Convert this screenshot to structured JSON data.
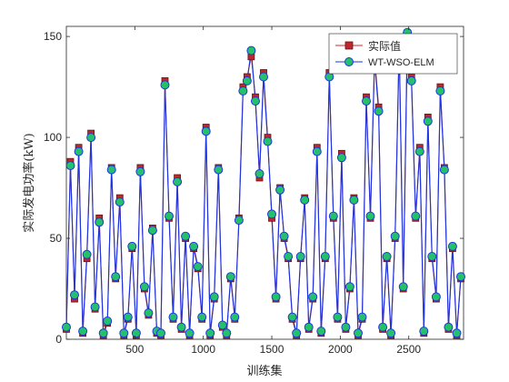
{
  "chart_data": {
    "type": "line",
    "xlabel": "训练集",
    "ylabel": "实际发电功率(kW)",
    "xlim": [
      0,
      2900
    ],
    "ylim": [
      0,
      155
    ],
    "x_ticks": [
      500,
      1000,
      1500,
      2000,
      2500
    ],
    "y_ticks": [
      0,
      50,
      100,
      150
    ],
    "grid": false,
    "legend_position": "top-right",
    "colors": {
      "actual_line": "#d62728",
      "actual_marker_fill": "#c0262a",
      "actual_marker_edge": "#5a1a1a",
      "pred_line": "#1f35e0",
      "pred_marker_fill": "#23c26a",
      "pred_marker_edge": "#1f35e0"
    },
    "series": [
      {
        "name": "实际值",
        "marker": "square",
        "x": [
          0,
          30,
          60,
          90,
          120,
          150,
          180,
          210,
          240,
          270,
          300,
          330,
          360,
          390,
          420,
          450,
          480,
          510,
          540,
          570,
          600,
          630,
          660,
          690,
          720,
          750,
          780,
          810,
          840,
          870,
          900,
          930,
          960,
          990,
          1020,
          1050,
          1080,
          1110,
          1140,
          1170,
          1200,
          1230,
          1260,
          1290,
          1320,
          1350,
          1380,
          1410,
          1440,
          1470,
          1500,
          1530,
          1560,
          1590,
          1620,
          1650,
          1680,
          1710,
          1740,
          1770,
          1800,
          1830,
          1860,
          1890,
          1920,
          1950,
          1980,
          2010,
          2040,
          2070,
          2100,
          2130,
          2160,
          2190,
          2220,
          2250,
          2280,
          2310,
          2340,
          2370,
          2400,
          2430,
          2460,
          2490,
          2520,
          2550,
          2580,
          2610,
          2640,
          2670,
          2700,
          2730,
          2760,
          2790,
          2820,
          2850,
          2880
        ],
        "values": [
          5,
          88,
          20,
          95,
          3,
          40,
          102,
          15,
          60,
          2,
          8,
          85,
          30,
          70,
          2,
          10,
          45,
          2,
          85,
          25,
          12,
          55,
          3,
          2,
          128,
          60,
          10,
          80,
          5,
          50,
          2,
          45,
          35,
          10,
          105,
          2,
          20,
          85,
          6,
          2,
          30,
          10,
          60,
          125,
          130,
          140,
          120,
          80,
          132,
          100,
          60,
          20,
          75,
          50,
          40,
          10,
          2,
          40,
          70,
          5,
          20,
          95,
          3,
          40,
          132,
          60,
          10,
          92,
          5,
          25,
          70,
          2,
          10,
          120,
          60,
          140,
          115,
          5,
          40,
          2,
          50,
          148,
          25,
          150,
          130,
          60,
          95,
          3,
          110,
          40,
          20,
          125,
          85,
          5,
          45,
          2,
          30
        ]
      },
      {
        "name": "WT-WSO-ELM",
        "marker": "circle",
        "x": [
          0,
          30,
          60,
          90,
          120,
          150,
          180,
          210,
          240,
          270,
          300,
          330,
          360,
          390,
          420,
          450,
          480,
          510,
          540,
          570,
          600,
          630,
          660,
          690,
          720,
          750,
          780,
          810,
          840,
          870,
          900,
          930,
          960,
          990,
          1020,
          1050,
          1080,
          1110,
          1140,
          1170,
          1200,
          1230,
          1260,
          1290,
          1320,
          1350,
          1380,
          1410,
          1440,
          1470,
          1500,
          1530,
          1560,
          1590,
          1620,
          1650,
          1680,
          1710,
          1740,
          1770,
          1800,
          1830,
          1860,
          1890,
          1920,
          1950,
          1980,
          2010,
          2040,
          2070,
          2100,
          2130,
          2160,
          2190,
          2220,
          2250,
          2280,
          2310,
          2340,
          2370,
          2400,
          2430,
          2460,
          2490,
          2520,
          2550,
          2580,
          2610,
          2640,
          2670,
          2700,
          2730,
          2760,
          2790,
          2820,
          2850,
          2880
        ],
        "values": [
          6,
          86,
          22,
          93,
          4,
          42,
          100,
          16,
          58,
          3,
          9,
          84,
          31,
          68,
          3,
          11,
          46,
          3,
          83,
          26,
          13,
          54,
          4,
          3,
          126,
          61,
          11,
          78,
          6,
          51,
          3,
          46,
          36,
          11,
          103,
          3,
          21,
          84,
          7,
          3,
          31,
          11,
          59,
          123,
          128,
          143,
          118,
          82,
          130,
          98,
          62,
          21,
          74,
          51,
          41,
          11,
          3,
          41,
          69,
          6,
          21,
          93,
          4,
          41,
          130,
          61,
          11,
          90,
          6,
          26,
          69,
          3,
          11,
          118,
          61,
          138,
          113,
          6,
          41,
          3,
          51,
          146,
          26,
          152,
          128,
          61,
          93,
          4,
          108,
          41,
          21,
          123,
          84,
          6,
          46,
          3,
          31
        ]
      }
    ]
  }
}
